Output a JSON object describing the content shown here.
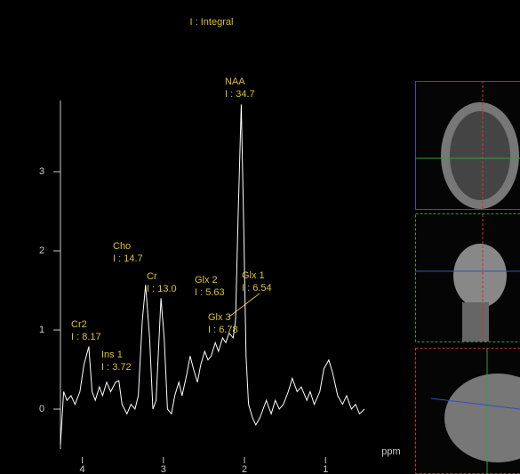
{
  "chart_data": {
    "type": "line",
    "title": "I : Integral",
    "x_label": "ppm",
    "x": [
      4.27,
      4.23,
      4.19,
      4.14,
      4.09,
      4.03,
      3.98,
      3.92,
      3.88,
      3.84,
      3.79,
      3.75,
      3.7,
      3.65,
      3.59,
      3.55,
      3.51,
      3.45,
      3.4,
      3.35,
      3.31,
      3.26,
      3.22,
      3.17,
      3.13,
      3.09,
      3.03,
      2.99,
      2.95,
      2.9,
      2.86,
      2.81,
      2.77,
      2.71,
      2.67,
      2.63,
      2.58,
      2.54,
      2.49,
      2.45,
      2.41,
      2.36,
      2.32,
      2.27,
      2.23,
      2.19,
      2.14,
      2.11,
      2.08,
      2.04,
      2.01,
      1.98,
      1.95,
      1.9,
      1.86,
      1.81,
      1.77,
      1.73,
      1.67,
      1.62,
      1.57,
      1.52,
      1.46,
      1.41,
      1.35,
      1.3,
      1.23,
      1.19,
      1.14,
      1.07,
      1.02,
      0.96,
      0.91,
      0.85,
      0.79,
      0.74,
      0.68,
      0.63,
      0.58,
      0.52
    ],
    "values": [
      -0.45,
      0.22,
      0.11,
      0.17,
      0.06,
      0.22,
      0.56,
      0.79,
      0.22,
      0.11,
      0.28,
      0.17,
      0.34,
      0.22,
      0.34,
      0.36,
      0.06,
      -0.06,
      0.06,
      0.0,
      0.17,
      1.12,
      1.57,
      0.9,
      0.0,
      0.11,
      1.4,
      0.9,
      0.0,
      -0.06,
      0.17,
      0.34,
      0.17,
      0.45,
      0.67,
      0.51,
      0.34,
      0.56,
      0.73,
      0.62,
      0.67,
      0.84,
      0.73,
      0.9,
      0.84,
      0.96,
      0.9,
      1.12,
      2.36,
      3.85,
      2.36,
      0.67,
      0.06,
      -0.11,
      -0.2,
      -0.11,
      0.0,
      0.11,
      -0.06,
      0.11,
      0.0,
      0.06,
      0.22,
      0.39,
      0.22,
      0.28,
      0.11,
      0.22,
      0.06,
      0.22,
      0.51,
      0.62,
      0.45,
      0.17,
      0.06,
      0.17,
      0.0,
      0.06,
      -0.06,
      0.0
    ],
    "color": "#ffffff",
    "xlim": [
      4.27,
      0.52
    ],
    "xticks": [
      4,
      3,
      2,
      1
    ],
    "ylim": [
      -0.5,
      3.9
    ],
    "yticks": [
      0,
      1,
      2,
      3
    ],
    "annotations": [
      {
        "name": "NAA",
        "integral": "I : 34.7"
      },
      {
        "name": "Cho",
        "integral": "I : 14.7"
      },
      {
        "name": "Cr",
        "integral": "I : 13.0"
      },
      {
        "name": "Cr2",
        "integral": "I : 8.17"
      },
      {
        "name": "Ins 1",
        "integral": "I : 3.72"
      },
      {
        "name": "Glx 2",
        "integral": "I : 5.63"
      },
      {
        "name": "Glx 1",
        "integral": "I : 6.54"
      },
      {
        "name": "Glx 3",
        "integral": "I : 6.78"
      }
    ]
  }
}
